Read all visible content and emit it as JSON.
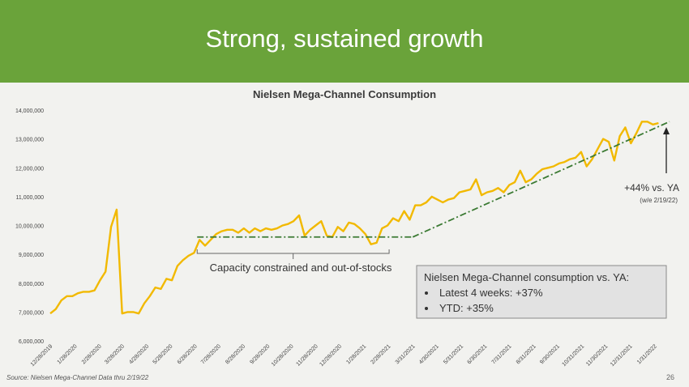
{
  "slide": {
    "title": "Strong, sustained growth",
    "source": "Source:  Nielsen Mega-Channel Data thru 2/19/22",
    "page_number": "26",
    "banner_color": "#6aa33a"
  },
  "annotations": {
    "yoy_label": "+44% vs. YA",
    "yoy_sub": "(w/e 2/19/22)",
    "capacity_label": "Capacity constrained and out-of-stocks",
    "callout_title": "Nielsen Mega-Channel consumption vs. YA:",
    "callout_items": [
      "Latest 4 weeks: +37%",
      "YTD:  +35%"
    ]
  },
  "chart_data": {
    "type": "line",
    "title": "Nielsen Mega-Channel Consumption",
    "xlabel": "",
    "ylabel": "",
    "ylim": [
      6000000,
      14000000
    ],
    "yticks": [
      "6,000,000",
      "7,000,000",
      "8,000,000",
      "9,000,000",
      "10,000,000",
      "11,000,000",
      "12,000,000",
      "13,000,000",
      "14,000,000"
    ],
    "xtick_labels": [
      "12/28/2019",
      "1/28/2020",
      "2/28/2020",
      "3/28/2020",
      "4/28/2020",
      "5/28/2020",
      "6/28/2020",
      "7/28/2020",
      "8/28/2020",
      "9/28/2020",
      "10/28/2020",
      "11/28/2020",
      "12/28/2020",
      "1/28/2021",
      "2/28/2021",
      "3/31/2021",
      "4/30/2021",
      "5/31/2021",
      "6/30/2021",
      "7/31/2021",
      "8/31/2021",
      "9/30/2021",
      "10/31/2021",
      "11/30/2021",
      "12/31/2021",
      "1/31/2022"
    ],
    "line_color": "#f2b900",
    "trend_color": "#3b7a33",
    "series": [
      {
        "name": "",
        "x_start": "12/28/2019",
        "x_step_weeks": 1,
        "values": [
          6950000,
          7100000,
          7400000,
          7550000,
          7550000,
          7650000,
          7700000,
          7700000,
          7750000,
          8100000,
          8400000,
          9950000,
          10550000,
          6950000,
          7000000,
          7000000,
          6950000,
          7300000,
          7550000,
          7850000,
          7800000,
          8150000,
          8100000,
          8600000,
          8800000,
          8950000,
          9050000,
          9500000,
          9300000,
          9500000,
          9700000,
          9800000,
          9850000,
          9850000,
          9750000,
          9900000,
          9750000,
          9900000,
          9800000,
          9900000,
          9850000,
          9900000,
          10000000,
          10050000,
          10150000,
          10350000,
          9650000,
          9850000,
          10000000,
          10150000,
          9650000,
          9600000,
          9950000,
          9800000,
          10100000,
          10050000,
          9900000,
          9700000,
          9350000,
          9400000,
          9900000,
          10000000,
          10250000,
          10150000,
          10500000,
          10200000,
          10700000,
          10700000,
          10800000,
          11000000,
          10900000,
          10800000,
          10900000,
          10950000,
          11150000,
          11200000,
          11250000,
          11600000,
          11050000,
          11150000,
          11200000,
          11300000,
          11150000,
          11400000,
          11500000,
          11900000,
          11500000,
          11600000,
          11800000,
          11950000,
          12000000,
          12050000,
          12150000,
          12200000,
          12300000,
          12350000,
          12550000,
          12050000,
          12300000,
          12650000,
          13000000,
          12900000,
          12250000,
          13100000,
          13400000,
          12850000,
          13200000,
          13600000,
          13600000,
          13500000,
          13550000
        ]
      }
    ],
    "trend_segments": [
      {
        "style": "dash-dot",
        "from": {
          "x": "7/1/2020",
          "y": 9600000
        },
        "to": {
          "x": "3/31/2021",
          "y": 9600000
        }
      },
      {
        "style": "dash-dot",
        "from": {
          "x": "3/31/2021",
          "y": 9600000
        },
        "to": {
          "x": "2/19/2022",
          "y": 13600000
        }
      }
    ],
    "capacity_bracket": {
      "from": "7/1/2020",
      "to": "3/1/2021"
    },
    "legend": "none",
    "grid": false
  }
}
